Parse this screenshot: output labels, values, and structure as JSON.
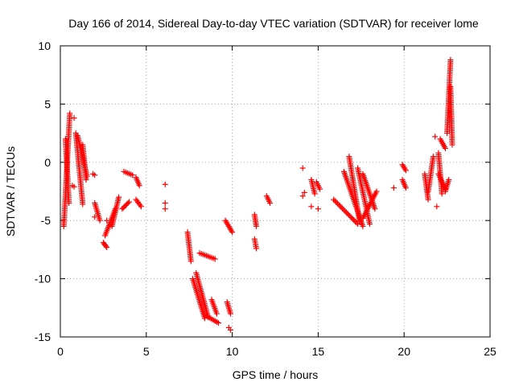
{
  "chart_data": {
    "type": "scatter",
    "title": "Day 166 of 2014, Sidereal Day-to-day VTEC variation (SDTVAR) for receiver lome",
    "xlabel": "GPS time / hours",
    "ylabel": "SDTVAR / TECUs",
    "xlim": [
      0,
      25
    ],
    "ylim": [
      -15,
      10
    ],
    "xticks": [
      0,
      5,
      10,
      15,
      20,
      25
    ],
    "yticks": [
      -15,
      -10,
      -5,
      0,
      5,
      10
    ],
    "grid": true,
    "marker": "+",
    "color": "#ff0000",
    "series": [
      {
        "name": "SDTVAR",
        "segments": [
          {
            "x0": 0.2,
            "x1": 0.55,
            "y0": -5.5,
            "y1": 4.2
          },
          {
            "x0": 0.3,
            "x1": 0.5,
            "y0": 2.0,
            "y1": -3.5
          },
          {
            "x0": 0.9,
            "x1": 1.3,
            "y0": 2.5,
            "y1": -3.6
          },
          {
            "x0": 1.0,
            "x1": 1.55,
            "y0": 2.3,
            "y1": -1.2
          },
          {
            "x0": 1.3,
            "x1": 1.5,
            "y0": 1.5,
            "y1": -1.5
          },
          {
            "x0": 2.0,
            "x1": 2.3,
            "y0": -3.5,
            "y1": -5.0
          },
          {
            "x0": 2.5,
            "x1": 2.7,
            "y0": -6.9,
            "y1": -7.3
          },
          {
            "x0": 2.6,
            "x1": 3.2,
            "y0": -6.3,
            "y1": -4.0
          },
          {
            "x0": 3.0,
            "x1": 3.4,
            "y0": -5.5,
            "y1": -3.0
          },
          {
            "x0": 3.6,
            "x1": 4.0,
            "y0": -4.0,
            "y1": -3.4
          },
          {
            "x0": 3.7,
            "x1": 4.2,
            "y0": -0.8,
            "y1": -1.1
          },
          {
            "x0": 4.4,
            "x1": 4.6,
            "y0": -1.3,
            "y1": -2.0
          },
          {
            "x0": 4.4,
            "x1": 4.7,
            "y0": -3.2,
            "y1": -3.8
          },
          {
            "x0": 7.4,
            "x1": 7.6,
            "y0": -6.0,
            "y1": -8.5
          },
          {
            "x0": 7.7,
            "x1": 8.4,
            "y0": -10.0,
            "y1": -13.4
          },
          {
            "x0": 7.9,
            "x1": 8.6,
            "y0": -9.5,
            "y1": -13.3
          },
          {
            "x0": 8.1,
            "x1": 9.0,
            "y0": -7.8,
            "y1": -8.3
          },
          {
            "x0": 8.8,
            "x1": 9.1,
            "y0": -11.8,
            "y1": -13.0
          },
          {
            "x0": 8.5,
            "x1": 9.2,
            "y0": -13.2,
            "y1": -13.8
          },
          {
            "x0": 9.7,
            "x1": 9.9,
            "y0": -12.0,
            "y1": -13.0
          },
          {
            "x0": 9.6,
            "x1": 10.0,
            "y0": -5.0,
            "y1": -6.0
          },
          {
            "x0": 11.3,
            "x1": 11.4,
            "y0": -4.5,
            "y1": -5.5
          },
          {
            "x0": 11.3,
            "x1": 11.4,
            "y0": -6.6,
            "y1": -7.4
          },
          {
            "x0": 12.0,
            "x1": 12.2,
            "y0": -2.9,
            "y1": -3.5
          },
          {
            "x0": 14.6,
            "x1": 14.8,
            "y0": -1.5,
            "y1": -2.7
          },
          {
            "x0": 14.9,
            "x1": 15.1,
            "y0": -1.7,
            "y1": -2.3
          },
          {
            "x0": 15.9,
            "x1": 17.3,
            "y0": -3.2,
            "y1": -5.3
          },
          {
            "x0": 16.5,
            "x1": 17.6,
            "y0": -0.8,
            "y1": -5.5
          },
          {
            "x0": 16.8,
            "x1": 17.4,
            "y0": 0.5,
            "y1": -5.0
          },
          {
            "x0": 17.3,
            "x1": 18.0,
            "y0": -0.5,
            "y1": -5.3
          },
          {
            "x0": 17.6,
            "x1": 18.3,
            "y0": -1.0,
            "y1": -4.0
          },
          {
            "x0": 17.6,
            "x1": 18.4,
            "y0": -4.8,
            "y1": -2.5
          },
          {
            "x0": 19.9,
            "x1": 20.1,
            "y0": -0.2,
            "y1": -0.7
          },
          {
            "x0": 19.9,
            "x1": 20.1,
            "y0": -1.5,
            "y1": -2.2
          },
          {
            "x0": 21.2,
            "x1": 21.4,
            "y0": -1.0,
            "y1": -3.2
          },
          {
            "x0": 21.4,
            "x1": 21.7,
            "y0": -2.5,
            "y1": 0.5
          },
          {
            "x0": 22.0,
            "x1": 22.2,
            "y0": 0.8,
            "y1": -2.7
          },
          {
            "x0": 22.0,
            "x1": 22.4,
            "y0": -1.0,
            "y1": -2.3
          },
          {
            "x0": 22.1,
            "x1": 22.4,
            "y0": 2.0,
            "y1": 1.2
          },
          {
            "x0": 22.5,
            "x1": 22.7,
            "y0": 2.5,
            "y1": 8.8
          },
          {
            "x0": 22.7,
            "x1": 22.8,
            "y0": 6.5,
            "y1": 1.5
          },
          {
            "x0": 22.4,
            "x1": 22.6,
            "y0": -2.5,
            "y1": -1.5
          }
        ],
        "points": [
          {
            "x": 0.8,
            "y": 3.8
          },
          {
            "x": 0.7,
            "y": -2.0
          },
          {
            "x": 0.8,
            "y": -2.1
          },
          {
            "x": 1.9,
            "y": -1.0
          },
          {
            "x": 2.0,
            "y": -1.1
          },
          {
            "x": 2.0,
            "y": -4.7
          },
          {
            "x": 2.7,
            "y": -5.0
          },
          {
            "x": 6.1,
            "y": -1.9
          },
          {
            "x": 6.1,
            "y": -3.5
          },
          {
            "x": 6.1,
            "y": -4.0
          },
          {
            "x": 9.8,
            "y": -14.2
          },
          {
            "x": 9.9,
            "y": -14.4
          },
          {
            "x": 14.1,
            "y": -0.5
          },
          {
            "x": 14.2,
            "y": -2.6
          },
          {
            "x": 14.1,
            "y": -2.9
          },
          {
            "x": 14.6,
            "y": -3.8
          },
          {
            "x": 15.0,
            "y": -4.0
          },
          {
            "x": 19.4,
            "y": -2.2
          },
          {
            "x": 21.8,
            "y": 2.2
          },
          {
            "x": 21.9,
            "y": -3.8
          }
        ]
      }
    ]
  }
}
